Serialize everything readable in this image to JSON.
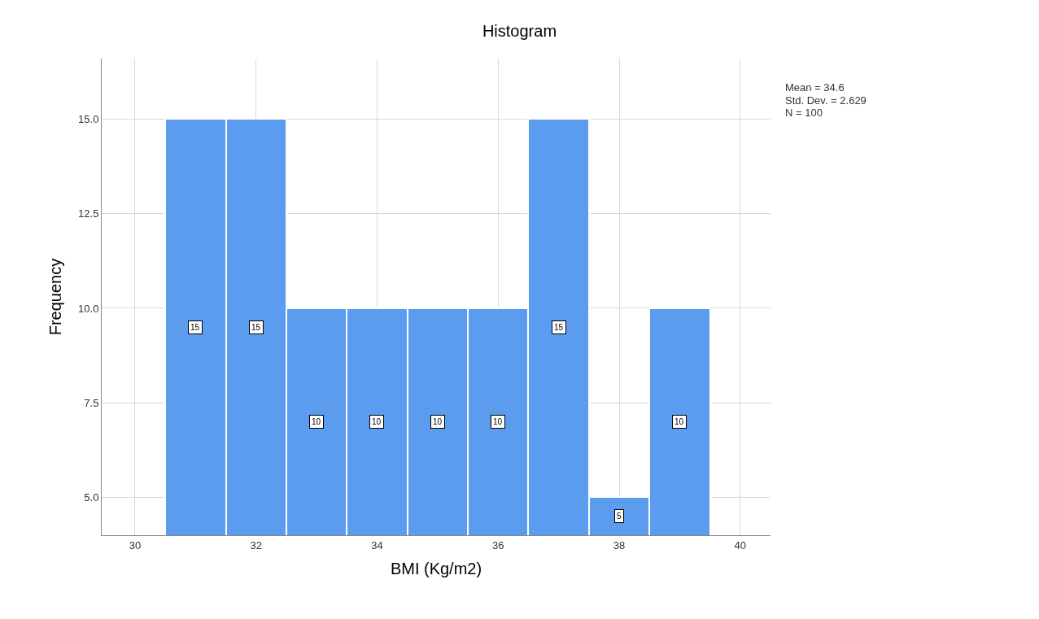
{
  "chart_data": {
    "type": "histogram",
    "title": "Histogram",
    "xlabel": "BMI (Kg/m2)",
    "ylabel": "Frequency",
    "bins": [
      30.5,
      31.5,
      32.5,
      33.5,
      34.5,
      35.5,
      36.5,
      37.5,
      38.5,
      39.5
    ],
    "values": [
      15,
      15,
      10,
      10,
      10,
      10,
      15,
      5,
      10
    ],
    "color": "#5b9cef",
    "xlim": [
      29.45,
      40.5
    ],
    "xticks": [
      30,
      32,
      34,
      36,
      38,
      40
    ],
    "ylim": [
      4,
      16.6
    ],
    "yticks": [
      {
        "value": 5,
        "label": "5.0"
      },
      {
        "value": 7.5,
        "label": "7.5"
      },
      {
        "value": 10,
        "label": "10.0"
      },
      {
        "value": 12.5,
        "label": "12.5"
      },
      {
        "value": 15,
        "label": "15.0"
      }
    ],
    "grid": true,
    "data_labels": true,
    "annotations": [
      "Mean = 34.6",
      "Std. Dev. = 2.629",
      "N = 100"
    ]
  }
}
